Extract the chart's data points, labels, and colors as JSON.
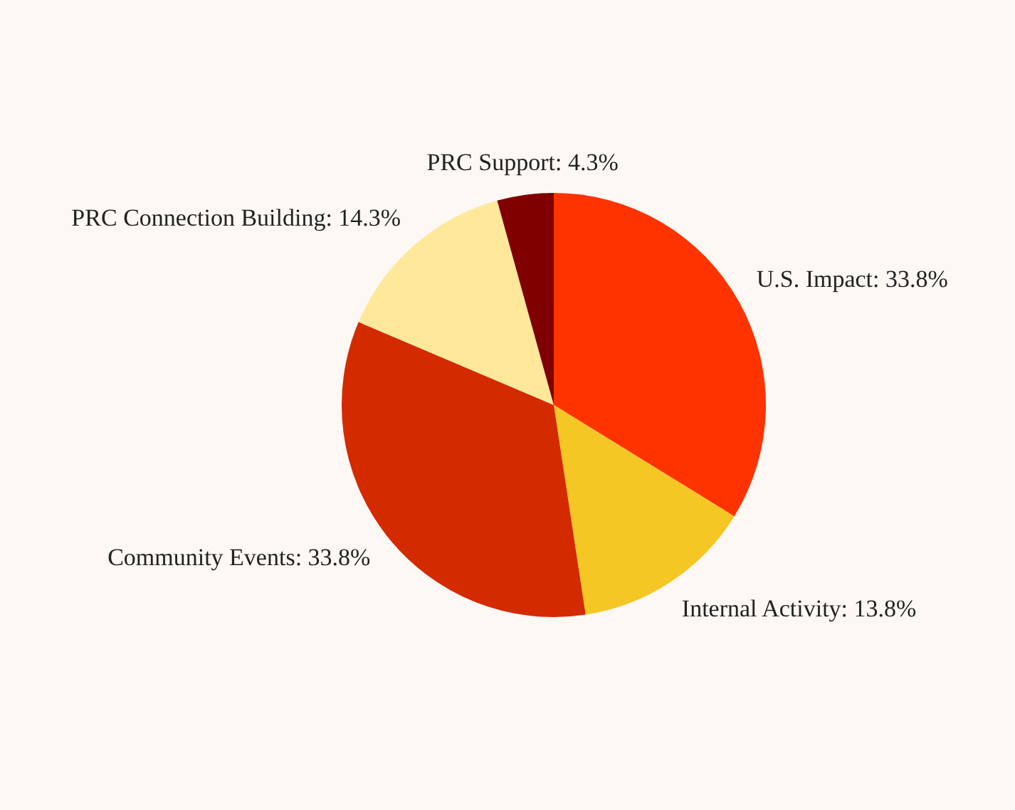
{
  "chart_data": {
    "type": "pie",
    "categories": [
      "U.S. Impact",
      "Internal Activity",
      "Community Events",
      "PRC Connection Building",
      "PRC Support"
    ],
    "values": [
      33.8,
      13.8,
      33.8,
      14.3,
      4.3
    ],
    "value_labels": [
      "33.8%",
      "13.8%",
      "33.8%",
      "14.3%",
      "4.3%"
    ],
    "colors": [
      "#ff3300",
      "#f5c724",
      "#d42a00",
      "#ffe89a",
      "#800000"
    ],
    "legend": false
  }
}
